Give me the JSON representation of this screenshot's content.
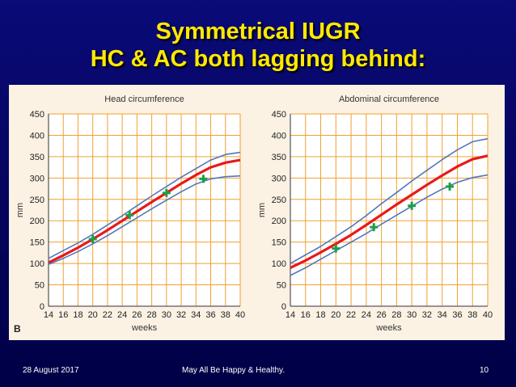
{
  "slide": {
    "title_line1": "Symmetrical IUGR",
    "title_line2": "HC & AC both lagging behind:",
    "footer_date": "28 August 2017",
    "footer_text": "May All Be Happy & Healthy.",
    "page_number": "10",
    "figure_label": "B"
  },
  "colors": {
    "background": "#0a0a78",
    "title": "#ffe900",
    "panel": "#fbf2e4",
    "grid": "#f0a030",
    "centile_line": "#4f78c0",
    "median_line": "#e8191a",
    "patient_marker": "#1e9e48"
  },
  "chart_data": [
    {
      "type": "line",
      "title": "Head circumference",
      "xlabel": "weeks",
      "ylabel": "mm",
      "xlim": [
        14,
        40
      ],
      "ylim": [
        0,
        450
      ],
      "xticks": [
        14,
        16,
        18,
        20,
        22,
        24,
        26,
        28,
        30,
        32,
        34,
        36,
        38,
        40
      ],
      "yticks": [
        0,
        50,
        100,
        150,
        200,
        250,
        300,
        350,
        400,
        450
      ],
      "grid": true,
      "series": [
        {
          "role": "upper",
          "color": "#4f78c0",
          "x": [
            14,
            16,
            18,
            20,
            22,
            24,
            26,
            28,
            30,
            32,
            34,
            36,
            38,
            40
          ],
          "y": [
            112,
            130,
            148,
            168,
            190,
            212,
            235,
            258,
            280,
            302,
            322,
            342,
            355,
            360
          ]
        },
        {
          "role": "median",
          "color": "#e8191a",
          "x": [
            14,
            16,
            18,
            20,
            22,
            24,
            26,
            28,
            30,
            32,
            34,
            36,
            38,
            40
          ],
          "y": [
            102,
            119,
            137,
            157,
            178,
            200,
            222,
            244,
            265,
            287,
            307,
            325,
            336,
            342
          ]
        },
        {
          "role": "lower",
          "color": "#4f78c0",
          "x": [
            14,
            16,
            18,
            20,
            22,
            24,
            26,
            28,
            30,
            32,
            34,
            36,
            38,
            40
          ],
          "y": [
            98,
            112,
            128,
            146,
            165,
            186,
            207,
            228,
            248,
            268,
            286,
            298,
            303,
            305
          ]
        }
      ],
      "points": [
        {
          "x": 20,
          "y": 157
        },
        {
          "x": 25,
          "y": 213
        },
        {
          "x": 30,
          "y": 265
        },
        {
          "x": 35,
          "y": 298
        }
      ]
    },
    {
      "type": "line",
      "title": "Abdominal circumference",
      "xlabel": "weeks",
      "ylabel": "mm",
      "xlim": [
        14,
        40
      ],
      "ylim": [
        0,
        450
      ],
      "xticks": [
        14,
        16,
        18,
        20,
        22,
        24,
        26,
        28,
        30,
        32,
        34,
        36,
        38,
        40
      ],
      "yticks": [
        0,
        50,
        100,
        150,
        200,
        250,
        300,
        350,
        400,
        450
      ],
      "grid": true,
      "series": [
        {
          "role": "upper",
          "color": "#4f78c0",
          "x": [
            14,
            16,
            18,
            20,
            22,
            24,
            26,
            28,
            30,
            32,
            34,
            36,
            38,
            40
          ],
          "y": [
            100,
            120,
            140,
            163,
            186,
            212,
            240,
            266,
            293,
            318,
            343,
            366,
            385,
            392
          ]
        },
        {
          "role": "median",
          "color": "#e8191a",
          "x": [
            14,
            16,
            18,
            20,
            22,
            24,
            26,
            28,
            30,
            32,
            34,
            36,
            38,
            40
          ],
          "y": [
            90,
            107,
            126,
            146,
            167,
            190,
            214,
            238,
            261,
            284,
            306,
            327,
            344,
            352
          ]
        },
        {
          "role": "lower",
          "color": "#4f78c0",
          "x": [
            14,
            16,
            18,
            20,
            22,
            24,
            26,
            28,
            30,
            32,
            34,
            36,
            38,
            40
          ],
          "y": [
            72,
            90,
            110,
            130,
            150,
            170,
            192,
            213,
            234,
            255,
            274,
            290,
            301,
            307
          ]
        }
      ],
      "points": [
        {
          "x": 20,
          "y": 135
        },
        {
          "x": 25,
          "y": 185
        },
        {
          "x": 30,
          "y": 235
        },
        {
          "x": 35,
          "y": 280
        }
      ]
    }
  ]
}
